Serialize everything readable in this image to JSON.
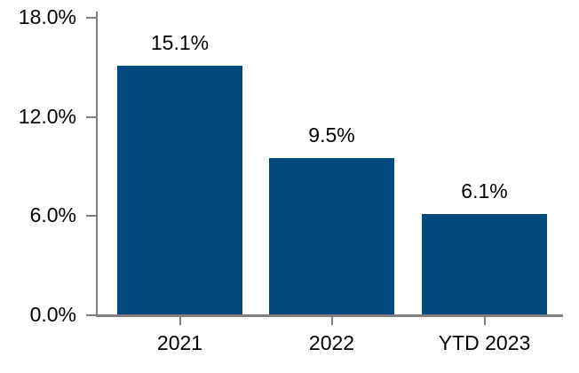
{
  "chart_data": {
    "type": "bar",
    "title": "",
    "xlabel": "",
    "ylabel": "",
    "categories": [
      "2021",
      "2022",
      "YTD 2023"
    ],
    "values": [
      15.1,
      9.5,
      6.1
    ],
    "data_labels": [
      "15.1%",
      "9.5%",
      "6.1%"
    ],
    "y_ticks": [
      {
        "value": 0,
        "label": "0.0%"
      },
      {
        "value": 6,
        "label": "6.0%"
      },
      {
        "value": 12,
        "label": "12.0%"
      },
      {
        "value": 18,
        "label": "18.0%"
      }
    ],
    "ylim": [
      0,
      18
    ],
    "grid": false,
    "legend": false,
    "bar_color": "#004A7E",
    "axis_color": "#7F7F7F",
    "text_color": "#000000",
    "background_color": "#FFFFFF"
  }
}
